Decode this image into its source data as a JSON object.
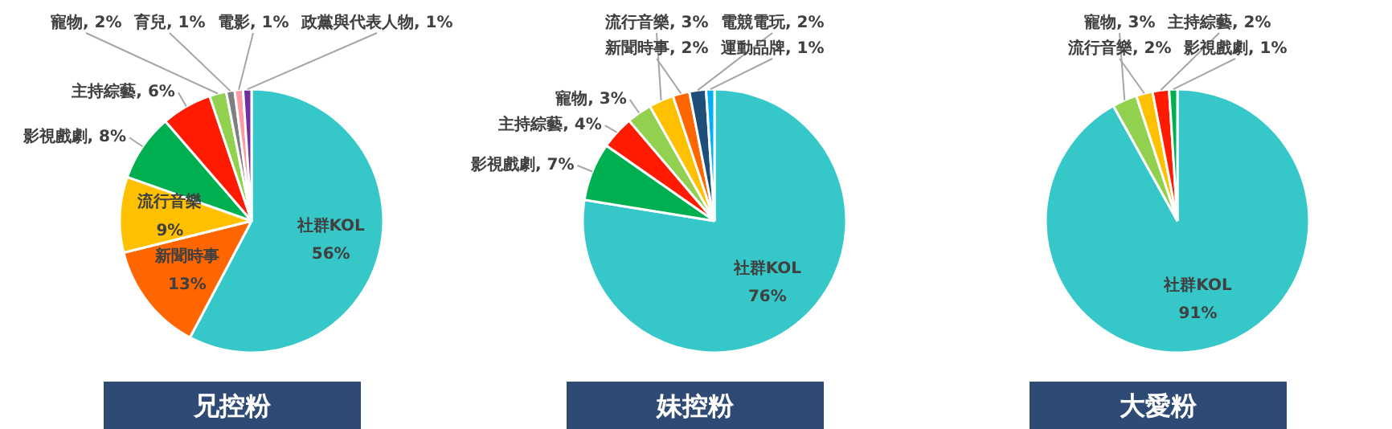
{
  "chart_data": [
    {
      "type": "pie",
      "title": "兄控粉",
      "categories": [
        "社群KOL",
        "新聞時事",
        "流行音樂",
        "影視戲劇",
        "主持綜藝",
        "寵物",
        "育兒",
        "電影",
        "政黨與代表人物"
      ],
      "values": [
        56,
        13,
        9,
        8,
        6,
        2,
        1,
        1,
        1
      ],
      "colors": [
        "#36c8c9",
        "#ff6600",
        "#ffc000",
        "#00b050",
        "#ff1a00",
        "#92d050",
        "#7f7f7f",
        "#ff9aa2",
        "#7030a0"
      ],
      "value_labels": [
        "56%",
        "13%",
        "9%",
        "8%",
        "6%",
        "2%",
        "1%",
        "1%",
        "1%"
      ]
    },
    {
      "type": "pie",
      "title": "妹控粉",
      "categories": [
        "社群KOL",
        "影視戲劇",
        "主持綜藝",
        "寵物",
        "流行音樂",
        "新聞時事",
        "電競電玩",
        "運動品牌"
      ],
      "values": [
        76,
        7,
        4,
        3,
        3,
        2,
        2,
        1
      ],
      "colors": [
        "#36c8c9",
        "#00b050",
        "#ff1a00",
        "#92d050",
        "#ffc000",
        "#ff6600",
        "#1f4e79",
        "#00b0f0"
      ],
      "value_labels": [
        "76%",
        "7%",
        "4%",
        "3%",
        "3%",
        "2%",
        "2%",
        "1%"
      ]
    },
    {
      "type": "pie",
      "title": "大愛粉",
      "categories": [
        "社群KOL",
        "寵物",
        "流行音樂",
        "主持綜藝",
        "影視戲劇"
      ],
      "values": [
        91,
        3,
        2,
        2,
        1
      ],
      "colors": [
        "#36c8c9",
        "#92d050",
        "#ffc000",
        "#ff1a00",
        "#00b050"
      ],
      "value_labels": [
        "91%",
        "3%",
        "2%",
        "2%",
        "1%"
      ]
    }
  ]
}
